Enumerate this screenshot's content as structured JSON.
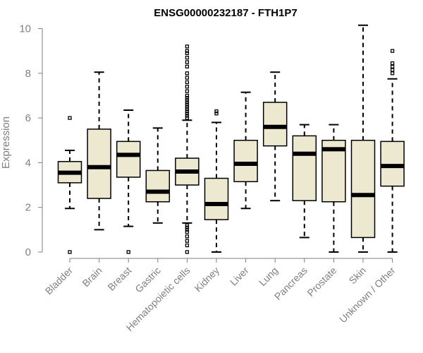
{
  "chart_data": {
    "type": "box",
    "title": "ENSG00000232187 - FTH1P7",
    "xlabel": "",
    "ylabel": "Expression",
    "ylim": [
      0,
      10.3
    ],
    "yticks": [
      0,
      2,
      4,
      6,
      8,
      10
    ],
    "grid": false,
    "colors": {
      "box_fill": "#ede8d0",
      "box_stroke": "#000000",
      "axis": "#7f7f7f"
    },
    "categories": [
      "Bladder",
      "Brain",
      "Breast",
      "Gastric",
      "Hematopoietic cells",
      "Kidney",
      "Liver",
      "Lung",
      "Pancreas",
      "Prostate",
      "Skin",
      "Unknown / Other"
    ],
    "boxes": [
      {
        "category": "Bladder",
        "whisker_low": 1.95,
        "q1": 3.1,
        "median": 3.55,
        "q3": 4.05,
        "whisker_high": 4.55,
        "outliers": [
          0.0,
          6.0
        ]
      },
      {
        "category": "Brain",
        "whisker_low": 1.0,
        "q1": 2.4,
        "median": 3.8,
        "q3": 5.5,
        "whisker_high": 8.05,
        "outliers": []
      },
      {
        "category": "Breast",
        "whisker_low": 1.15,
        "q1": 3.35,
        "median": 4.35,
        "q3": 4.95,
        "whisker_high": 6.35,
        "outliers": [
          0.0
        ]
      },
      {
        "category": "Gastric",
        "whisker_low": 1.3,
        "q1": 2.25,
        "median": 2.7,
        "q3": 3.65,
        "whisker_high": 5.55,
        "outliers": []
      },
      {
        "category": "Hematopoietic cells",
        "whisker_low": 1.3,
        "q1": 3.0,
        "median": 3.6,
        "q3": 4.2,
        "whisker_high": 5.9,
        "outliers": [
          0.0,
          0.3,
          0.5,
          0.7,
          0.9,
          1.0,
          1.1,
          1.2,
          6.0,
          6.1,
          6.2,
          6.3,
          6.4,
          6.5,
          6.6,
          6.7,
          6.8,
          6.9,
          7.0,
          7.2,
          7.4,
          7.6,
          7.8,
          8.0,
          8.3,
          8.5,
          8.7,
          8.9,
          9.0,
          9.2
        ]
      },
      {
        "category": "Kidney",
        "whisker_low": 0.0,
        "q1": 1.45,
        "median": 2.15,
        "q3": 3.3,
        "whisker_high": 5.8,
        "outliers": [
          6.2,
          6.3
        ]
      },
      {
        "category": "Liver",
        "whisker_low": 1.95,
        "q1": 3.15,
        "median": 3.95,
        "q3": 5.0,
        "whisker_high": 7.15,
        "outliers": []
      },
      {
        "category": "Lung",
        "whisker_low": 2.3,
        "q1": 4.75,
        "median": 5.6,
        "q3": 6.7,
        "whisker_high": 8.05,
        "outliers": []
      },
      {
        "category": "Pancreas",
        "whisker_low": 0.65,
        "q1": 2.3,
        "median": 4.4,
        "q3": 5.2,
        "whisker_high": 5.7,
        "outliers": []
      },
      {
        "category": "Prostate",
        "whisker_low": 0.0,
        "q1": 2.25,
        "median": 4.6,
        "q3": 5.0,
        "whisker_high": 5.7,
        "outliers": []
      },
      {
        "category": "Skin",
        "whisker_low": 0.0,
        "q1": 0.65,
        "median": 2.55,
        "q3": 5.0,
        "whisker_high": 10.15,
        "outliers": []
      },
      {
        "category": "Unknown / Other",
        "whisker_low": 0.0,
        "q1": 2.95,
        "median": 3.85,
        "q3": 4.95,
        "whisker_high": 7.75,
        "outliers": [
          8.0,
          8.15,
          8.3,
          8.45,
          9.0
        ]
      }
    ]
  }
}
